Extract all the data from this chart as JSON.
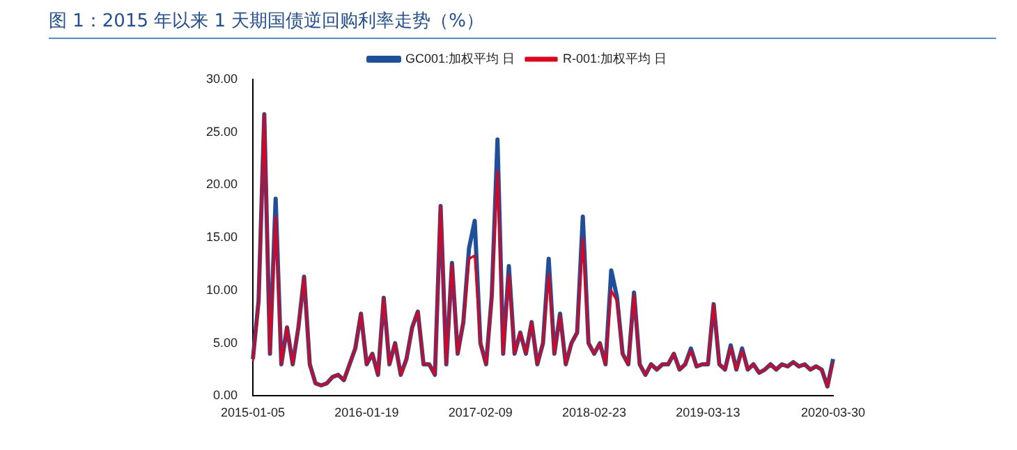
{
  "chart_data": {
    "type": "line",
    "title": "图 1：2015 年以来 1 天期国债逆回购利率走势（%）",
    "categories": [
      "2015-01-05",
      null,
      null,
      null,
      null,
      null,
      null,
      null,
      null,
      null,
      null,
      null,
      null,
      null,
      null,
      null,
      null,
      null,
      null,
      null,
      "2016-01-19",
      null,
      null,
      null,
      null,
      null,
      null,
      null,
      null,
      null,
      null,
      null,
      null,
      null,
      null,
      null,
      null,
      null,
      null,
      null,
      "2017-02-09",
      null,
      null,
      null,
      null,
      null,
      null,
      null,
      null,
      null,
      null,
      null,
      null,
      null,
      null,
      null,
      null,
      null,
      null,
      null,
      "2018-02-23",
      null,
      null,
      null,
      null,
      null,
      null,
      null,
      null,
      null,
      null,
      null,
      null,
      null,
      null,
      null,
      null,
      null,
      null,
      null,
      "2019-03-13",
      null,
      null,
      null,
      null,
      null,
      null,
      null,
      null,
      null,
      null,
      null,
      null,
      null,
      null,
      null,
      null,
      null,
      null,
      null,
      null,
      null,
      "2020-03-30"
    ],
    "series": [
      {
        "name": "GC001:加权平均 日",
        "color": "#1f4e9c",
        "values": [
          3.5,
          9,
          26.7,
          4,
          18.7,
          3,
          6.5,
          3,
          6.5,
          11.3,
          3,
          1.2,
          1,
          1.2,
          1.8,
          2,
          1.5,
          3,
          4.5,
          7.8,
          3,
          4,
          2,
          9.3,
          3,
          5,
          2,
          3.5,
          6.5,
          8,
          3,
          3,
          2,
          18,
          3,
          12.6,
          4,
          7,
          14,
          16.6,
          5,
          3,
          9.5,
          24.3,
          4,
          12.3,
          4,
          6,
          4,
          7,
          3,
          5,
          13,
          4,
          7.8,
          3,
          5,
          6,
          17,
          5,
          4,
          5,
          3,
          11.9,
          9.4,
          4,
          3,
          9.8,
          3,
          2,
          3,
          2.5,
          3,
          3,
          4,
          2.5,
          3,
          4.5,
          2.8,
          3,
          3,
          8.7,
          3,
          2.5,
          4.8,
          2.5,
          4.5,
          2.5,
          3,
          2.2,
          2.5,
          3,
          2.5,
          3,
          2.8,
          3.2,
          2.8,
          3,
          2.5,
          2.8,
          2.5,
          0.9,
          3.5
        ]
      },
      {
        "name": "R-001:加权平均 日",
        "color": "#e3001b",
        "values": [
          3.3,
          8.8,
          26.7,
          4,
          17,
          3,
          6.5,
          3,
          6.5,
          11.3,
          3,
          1.2,
          1,
          1.2,
          1.8,
          2,
          1.5,
          3,
          4.5,
          7.8,
          3,
          4,
          2,
          9.3,
          3,
          5,
          2,
          3.5,
          6.5,
          8,
          3,
          3,
          2,
          18,
          3,
          12.5,
          4,
          7,
          13,
          13.3,
          5,
          3,
          9.2,
          21.3,
          4,
          11.5,
          4,
          6,
          4,
          7,
          3,
          5,
          11.5,
          4,
          7.6,
          3,
          5,
          6,
          14.9,
          5,
          4,
          5,
          3,
          10,
          9,
          4,
          3,
          9.6,
          3,
          2,
          3,
          2.5,
          3,
          3,
          4,
          2.5,
          3,
          4.3,
          2.8,
          3,
          3,
          8.7,
          3,
          2.5,
          4.6,
          2.5,
          4.3,
          2.5,
          3,
          2.2,
          2.5,
          3,
          2.5,
          3,
          2.8,
          3.2,
          2.8,
          3,
          2.5,
          2.8,
          2.5,
          0.9,
          3.2
        ]
      }
    ],
    "ylim": [
      0,
      30
    ],
    "yticks": [
      {
        "value": 0,
        "label": "0.00"
      },
      {
        "value": 5,
        "label": "5.00"
      },
      {
        "value": 10,
        "label": "10.00"
      },
      {
        "value": 15,
        "label": "15.00"
      },
      {
        "value": 20,
        "label": "20.00"
      },
      {
        "value": 25,
        "label": "25.00"
      },
      {
        "value": 30,
        "label": "30.00"
      }
    ],
    "legend": "top",
    "marker": "none",
    "line_style": "solid"
  }
}
